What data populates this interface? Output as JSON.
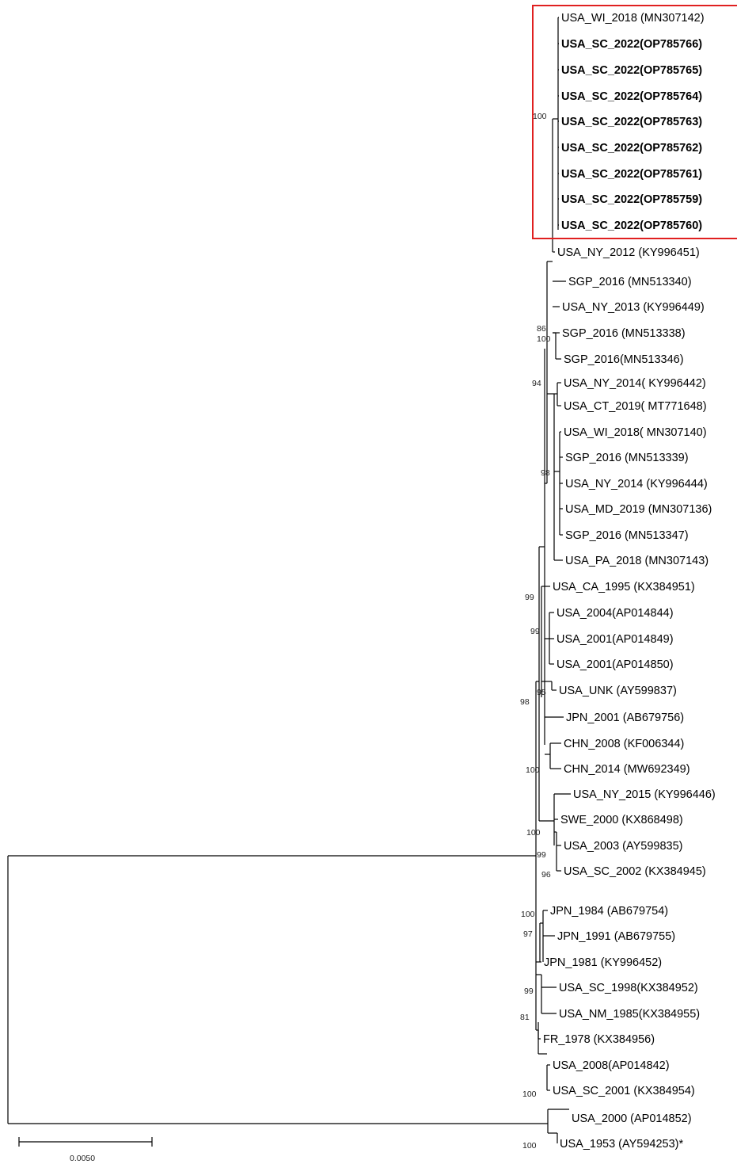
{
  "colors": {
    "highlight": "#e02020",
    "branch": "#000000",
    "text": "#000000"
  },
  "tree": {
    "highlighted_clade": [
      "USA_WI_2018 (MN307142)",
      "USA_SC_2022(OP785766)",
      "USA_SC_2022(OP785765)",
      "USA_SC_2022(OP785764)",
      "USA_SC_2022(OP785763)",
      "USA_SC_2022(OP785762)",
      "USA_SC_2022(OP785761)",
      "USA_SC_2022(OP785759)",
      "USA_SC_2022(OP785760)"
    ],
    "scale_bar_label": "0.0050",
    "leaves": [
      {
        "label": "USA_WI_2018 (MN307142)",
        "bold": false
      },
      {
        "label": "USA_SC_2022(OP785766)",
        "bold": true
      },
      {
        "label": "USA_SC_2022(OP785765)",
        "bold": true
      },
      {
        "label": "USA_SC_2022(OP785764)",
        "bold": true
      },
      {
        "label": "USA_SC_2022(OP785763)",
        "bold": true
      },
      {
        "label": "USA_SC_2022(OP785762)",
        "bold": true
      },
      {
        "label": "USA_SC_2022(OP785761)",
        "bold": true
      },
      {
        "label": "USA_SC_2022(OP785759)",
        "bold": true
      },
      {
        "label": "USA_SC_2022(OP785760)",
        "bold": true
      },
      {
        "label": "USA_NY_2012 (KY996451)",
        "bold": false
      },
      {
        "label": "SGP_2016 (MN513340)",
        "bold": false
      },
      {
        "label": "USA_NY_2013 (KY996449)",
        "bold": false
      },
      {
        "label": "SGP_2016 (MN513338)",
        "bold": false
      },
      {
        "label": "SGP_2016(MN513346)",
        "bold": false
      },
      {
        "label": "USA_NY_2014( KY996442)",
        "bold": false
      },
      {
        "label": "USA_CT_2019( MT771648)",
        "bold": false
      },
      {
        "label": "USA_WI_2018( MN307140)",
        "bold": false
      },
      {
        "label": "SGP_2016 (MN513339)",
        "bold": false
      },
      {
        "label": "USA_NY_2014 (KY996444)",
        "bold": false
      },
      {
        "label": "USA_MD_2019 (MN307136)",
        "bold": false
      },
      {
        "label": "SGP_2016 (MN513347)",
        "bold": false
      },
      {
        "label": "USA_PA_2018 (MN307143)",
        "bold": false
      },
      {
        "label": "USA_CA_1995 (KX384951)",
        "bold": false
      },
      {
        "label": "USA_2004(AP014844)",
        "bold": false
      },
      {
        "label": "USA_2001(AP014849)",
        "bold": false
      },
      {
        "label": "USA_2001(AP014850)",
        "bold": false
      },
      {
        "label": "USA_UNK (AY599837)",
        "bold": false
      },
      {
        "label": "JPN_2001 (AB679756)",
        "bold": false
      },
      {
        "label": "CHN_2008 (KF006344)",
        "bold": false
      },
      {
        "label": "CHN_2014 (MW692349)",
        "bold": false
      },
      {
        "label": "USA_NY_2015 (KY996446)",
        "bold": false
      },
      {
        "label": "SWE_2000 (KX868498)",
        "bold": false
      },
      {
        "label": "USA_2003 (AY599835)",
        "bold": false
      },
      {
        "label": "USA_SC_2002 (KX384945)",
        "bold": false
      },
      {
        "label": "JPN_1984 (AB679754)",
        "bold": false
      },
      {
        "label": "JPN_1991 (AB679755)",
        "bold": false
      },
      {
        "label": "JPN_1981 (KY996452)",
        "bold": false
      },
      {
        "label": "USA_SC_1998(KX384952)",
        "bold": false
      },
      {
        "label": "USA_NM_1985(KX384955)",
        "bold": false
      },
      {
        "label": "FR_1978 (KX384956)",
        "bold": false
      },
      {
        "label": "USA_2008(AP014842)",
        "bold": false
      },
      {
        "label": "USA_SC_2001 (KX384954)",
        "bold": false
      },
      {
        "label": "USA_2000 (AP014852)",
        "bold": false
      },
      {
        "label": "USA_1953 (AY594253)*",
        "bold": false
      }
    ],
    "bootstrap_values": [
      "100",
      "86",
      "100",
      "94",
      "98",
      "99",
      "99",
      "95",
      "98",
      "100",
      "100",
      "99",
      "96",
      "100",
      "97",
      "99",
      "81",
      "100",
      "100"
    ]
  }
}
